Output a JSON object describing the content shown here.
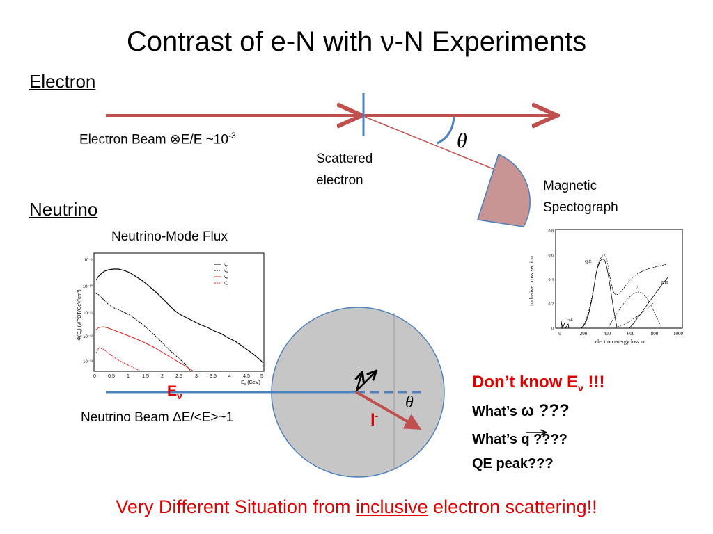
{
  "title": "Contrast of e-N with  ν-N Experiments",
  "electron_section": {
    "heading": "Electron",
    "beam_label": "Electron Beam ⊗E/E ~10",
    "beam_label_exp": "-3",
    "scattered_line1": "Scattered",
    "scattered_line2": "electron",
    "theta": "θ",
    "spectrograph_line1": "Magnetic",
    "spectrograph_line2": "Spectograph"
  },
  "neutrino_section": {
    "heading": "Neutrino",
    "flux_title": "Neutrino-Mode Flux",
    "beam_label": "Neutrino Beam ΔE/<E>~1",
    "e_nu_base": "E",
    "e_nu_sub": "ν",
    "lepton_base": "l",
    "lepton_sup": "-",
    "theta": "θ"
  },
  "questions": {
    "dont_know_base": "Don’t know E",
    "dont_know_sub": "ν",
    "dont_know_tail": " !!!",
    "omega_prefix": "What’s ",
    "omega_symbol": "ω",
    "omega_tail": " ???",
    "q_prefix": "What’s ",
    "q_symbol": "q",
    "q_tail": " ????",
    "qe_peak": "QE peak???"
  },
  "footer": {
    "before": "Very Different Situation from ",
    "underlined": "inclusive",
    "after": " electron scattering!!"
  },
  "flux_plot": {
    "ylabel": "Φ(E",
    "ylabel_rest": ") (ν/POT/GeV/cm²)",
    "xlabel": "E",
    "xlabel_sub": "ν",
    "xlabel_unit": " (GeV)",
    "y_ticks": [
      "10⁻⁹",
      "10⁻¹⁰",
      "10⁻¹¹",
      "10⁻¹²",
      "10⁻¹³"
    ],
    "x_ticks": [
      "0",
      "0.5",
      "1",
      "1.5",
      "2",
      "2.5",
      "3",
      "3.5",
      "4",
      "4.5",
      "5"
    ],
    "legend": [
      "ν",
      "ν̄",
      "ν",
      "ν̄"
    ],
    "legend_sub": [
      "μ",
      "μ",
      "e",
      "e"
    ]
  },
  "xsec_plot": {
    "ylabel": "inclusive cross section",
    "xlabel": "electron energy loss ω",
    "x_ticks": [
      "0",
      "200",
      "400",
      "600",
      "800",
      "1000"
    ],
    "y_ticks": [
      "0.8",
      "0.6",
      "0.4",
      "0.2",
      "0"
    ],
    "labels": {
      "qe": "Q.E",
      "delta": "Δ",
      "dis": "DIS",
      "pi": "π",
      "coh": "coh"
    }
  },
  "colors": {
    "beam_red": "#c0504d",
    "marker_blue": "#4f81bd",
    "title_red": "#e00000",
    "sphere_fill": "#c6c6c6",
    "spectrograph_fill": "#c99494",
    "flux_nu_mu": "#000000",
    "flux_nu_e": "#e02020"
  }
}
